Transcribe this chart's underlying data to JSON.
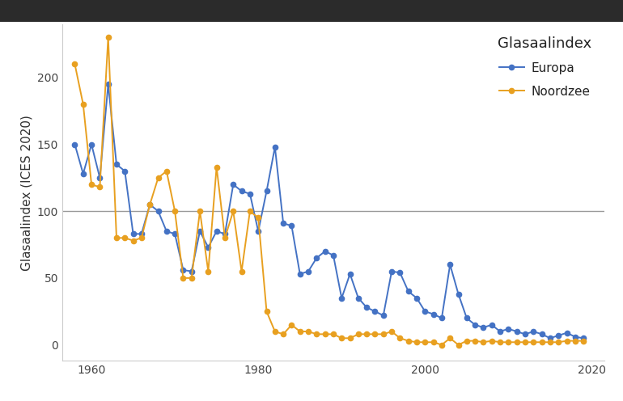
{
  "title": "Glasaalindex",
  "ylabel": "Glasaalindex (ICES 2020)",
  "xlabel": "",
  "bg_color": "#ffffff",
  "panel_bg": "#ffffff",
  "top_bar_color": "#2b2b2b",
  "top_bar_height": 0.055,
  "reference_line": 100,
  "reference_color": "#999999",
  "europa_color": "#4472C4",
  "noordzee_color": "#E8A020",
  "europa_label": "Europa",
  "noordzee_label": "Noordzee",
  "years": [
    1958,
    1959,
    1960,
    1961,
    1962,
    1963,
    1964,
    1965,
    1966,
    1967,
    1968,
    1969,
    1970,
    1971,
    1972,
    1973,
    1974,
    1975,
    1976,
    1977,
    1978,
    1979,
    1980,
    1981,
    1982,
    1983,
    1984,
    1985,
    1986,
    1987,
    1988,
    1989,
    1990,
    1991,
    1992,
    1993,
    1994,
    1995,
    1996,
    1997,
    1998,
    1999,
    2000,
    2001,
    2002,
    2003,
    2004,
    2005,
    2006,
    2007,
    2008,
    2009,
    2010,
    2011,
    2012,
    2013,
    2014,
    2015,
    2016,
    2017,
    2018,
    2019
  ],
  "europa": [
    150,
    128,
    150,
    125,
    195,
    135,
    130,
    83,
    83,
    105,
    100,
    85,
    83,
    56,
    55,
    85,
    73,
    85,
    83,
    120,
    115,
    113,
    85,
    115,
    148,
    91,
    89,
    53,
    55,
    65,
    70,
    67,
    35,
    53,
    35,
    28,
    25,
    22,
    55,
    54,
    40,
    35,
    25,
    23,
    20,
    60,
    38,
    20,
    15,
    13,
    15,
    10,
    12,
    10,
    8,
    10,
    8,
    5,
    7,
    9,
    6,
    5
  ],
  "noordzee": [
    210,
    180,
    120,
    118,
    230,
    80,
    80,
    78,
    80,
    105,
    125,
    130,
    100,
    50,
    50,
    100,
    55,
    133,
    80,
    100,
    55,
    100,
    95,
    25,
    10,
    8,
    15,
    10,
    10,
    8,
    8,
    8,
    5,
    5,
    8,
    8,
    8,
    8,
    10,
    5,
    3,
    2,
    2,
    2,
    0,
    5,
    0,
    3,
    3,
    2,
    3,
    2,
    2,
    2,
    2,
    2,
    2,
    2,
    2,
    3,
    3,
    3
  ],
  "ylim": [
    -12,
    240
  ],
  "xlim": [
    1956.5,
    2021.5
  ],
  "yticks": [
    0,
    50,
    100,
    150,
    200
  ],
  "xticks": [
    1960,
    1980,
    2000,
    2020
  ],
  "line_width": 1.4,
  "marker_size": 4.5,
  "legend_title_fontsize": 13,
  "legend_fontsize": 11,
  "ylabel_fontsize": 11,
  "tick_labelsize": 10
}
